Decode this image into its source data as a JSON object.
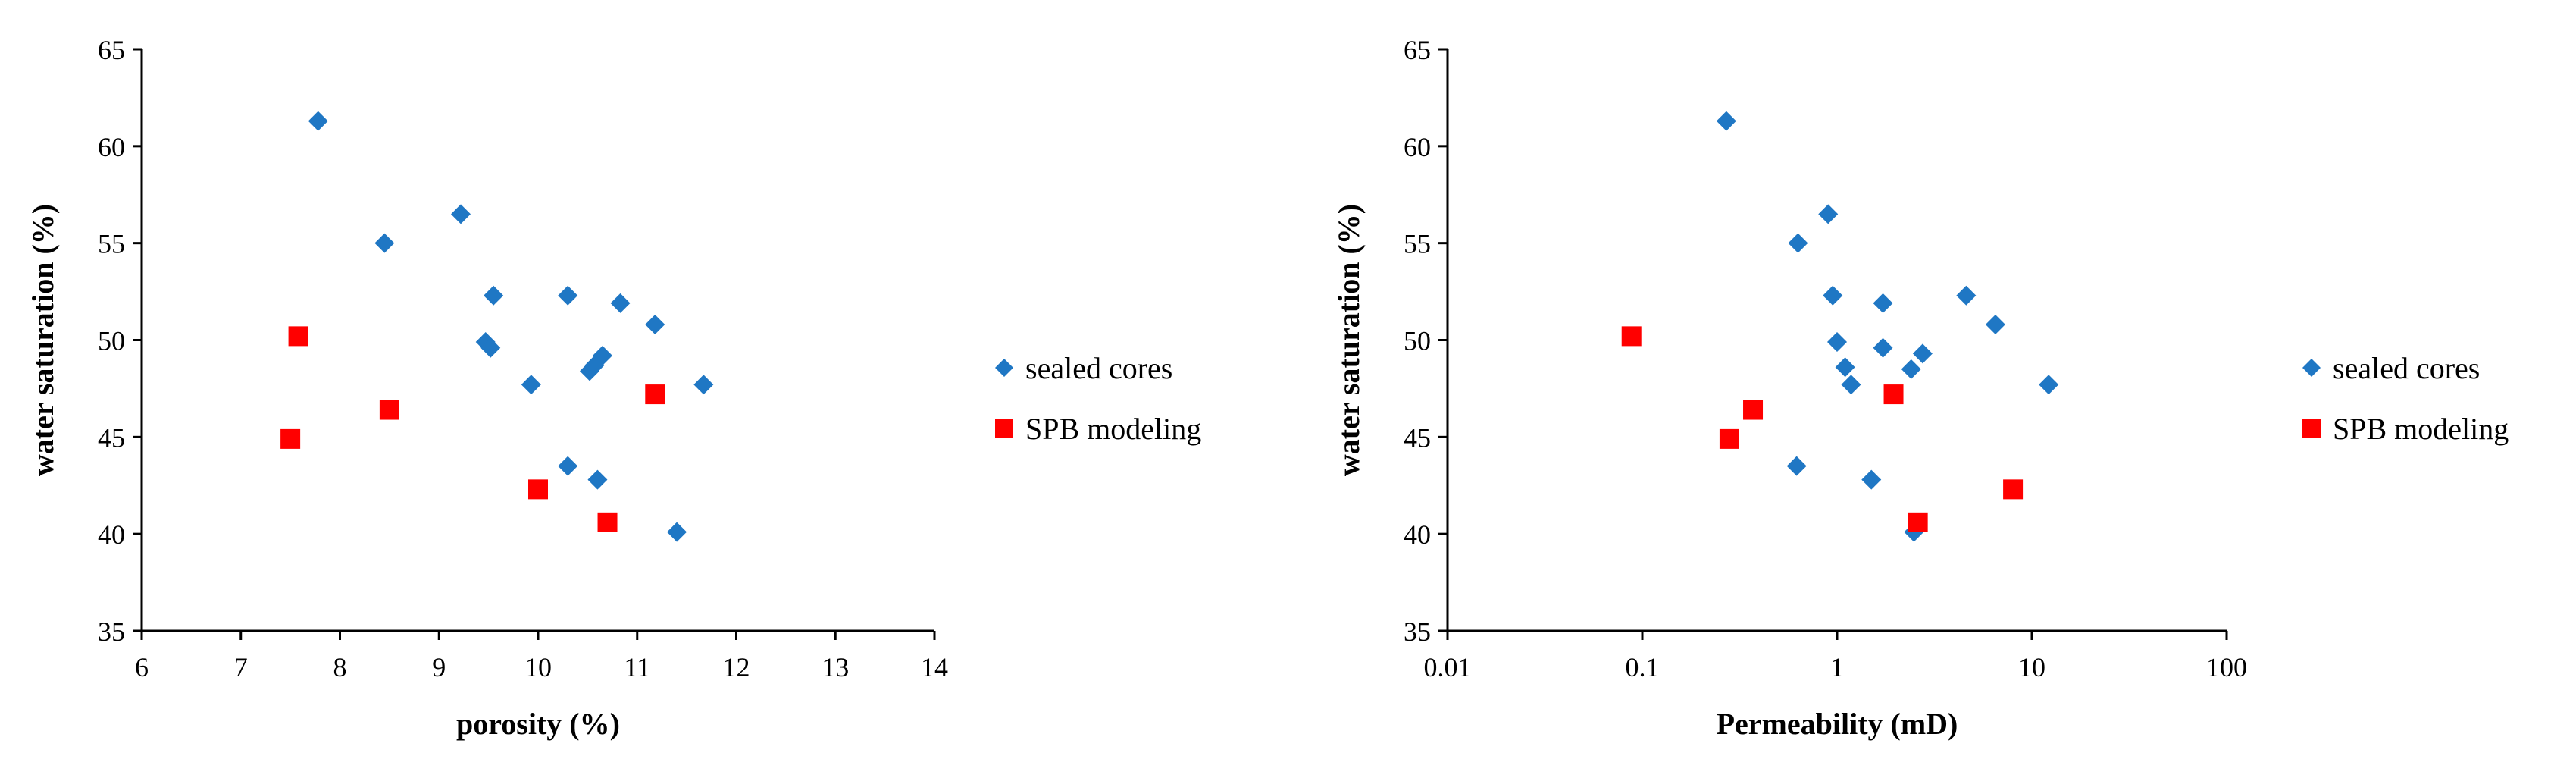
{
  "chart_data": [
    {
      "type": "scatter",
      "xlabel": "porosity (%)",
      "ylabel": "water saturation (%)",
      "xscale": "linear",
      "xlim": [
        6,
        14
      ],
      "ylim": [
        35,
        65
      ],
      "xticks": [
        6,
        7,
        8,
        9,
        10,
        11,
        12,
        13,
        14
      ],
      "yticks": [
        35,
        40,
        45,
        50,
        55,
        60,
        65
      ],
      "xtick_labels": [
        "6",
        "7",
        "8",
        "9",
        "10",
        "11",
        "12",
        "13",
        "14"
      ],
      "ytick_labels": [
        "35",
        "40",
        "45",
        "50",
        "55",
        "60",
        "65"
      ],
      "grid": false,
      "legend_position": "right",
      "series": [
        {
          "name": "sealed cores",
          "marker": "diamond",
          "color": "#1f77c4",
          "points": [
            [
              7.78,
              61.3
            ],
            [
              8.45,
              55.0
            ],
            [
              9.22,
              56.5
            ],
            [
              9.55,
              52.3
            ],
            [
              10.3,
              52.3
            ],
            [
              10.83,
              51.9
            ],
            [
              11.18,
              50.8
            ],
            [
              9.47,
              49.9
            ],
            [
              9.52,
              49.6
            ],
            [
              10.65,
              49.2
            ],
            [
              10.57,
              48.7
            ],
            [
              10.52,
              48.4
            ],
            [
              9.93,
              47.7
            ],
            [
              11.67,
              47.7
            ],
            [
              10.3,
              43.5
            ],
            [
              10.6,
              42.8
            ],
            [
              11.4,
              40.1
            ]
          ]
        },
        {
          "name": "SPB modeling",
          "marker": "square",
          "color": "#ff0000",
          "points": [
            [
              7.58,
              50.2
            ],
            [
              8.5,
              46.4
            ],
            [
              7.5,
              44.9
            ],
            [
              11.18,
              47.2
            ],
            [
              10.0,
              42.3
            ],
            [
              10.7,
              40.6
            ]
          ]
        }
      ]
    },
    {
      "type": "scatter",
      "xlabel": "Permeability (mD)",
      "ylabel": "water saturation (%)",
      "xscale": "log",
      "xlim": [
        0.01,
        100
      ],
      "ylim": [
        35,
        65
      ],
      "xticks": [
        0.01,
        0.1,
        1,
        10,
        100
      ],
      "yticks": [
        35,
        40,
        45,
        50,
        55,
        60,
        65
      ],
      "xtick_labels": [
        "0.01",
        "0.1",
        "1",
        "10",
        "100"
      ],
      "ytick_labels": [
        "35",
        "40",
        "45",
        "50",
        "55",
        "60",
        "65"
      ],
      "grid": false,
      "legend_position": "right",
      "series": [
        {
          "name": "sealed cores",
          "marker": "diamond",
          "color": "#1f77c4",
          "points": [
            [
              0.27,
              61.3
            ],
            [
              0.63,
              55.0
            ],
            [
              0.9,
              56.5
            ],
            [
              0.95,
              52.3
            ],
            [
              4.6,
              52.3
            ],
            [
              1.72,
              51.9
            ],
            [
              6.5,
              50.8
            ],
            [
              1.0,
              49.9
            ],
            [
              1.72,
              49.6
            ],
            [
              2.75,
              49.3
            ],
            [
              1.1,
              48.6
            ],
            [
              2.4,
              48.5
            ],
            [
              1.18,
              47.7
            ],
            [
              12.2,
              47.7
            ],
            [
              0.62,
              43.5
            ],
            [
              1.5,
              42.8
            ],
            [
              2.48,
              40.1
            ]
          ]
        },
        {
          "name": "SPB modeling",
          "marker": "square",
          "color": "#ff0000",
          "points": [
            [
              0.088,
              50.2
            ],
            [
              0.37,
              46.4
            ],
            [
              0.28,
              44.9
            ],
            [
              1.95,
              47.2
            ],
            [
              8.0,
              42.3
            ],
            [
              2.6,
              40.6
            ]
          ]
        }
      ]
    }
  ]
}
